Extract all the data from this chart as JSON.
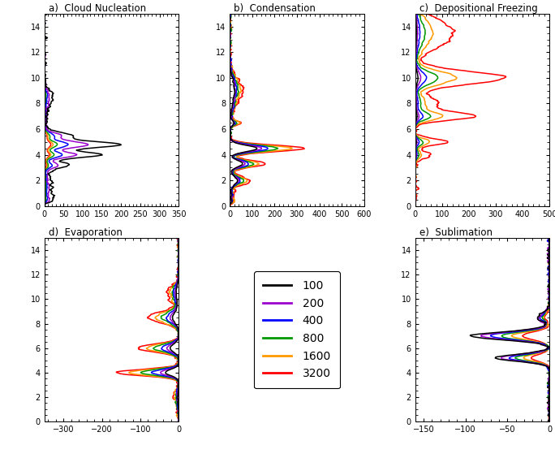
{
  "titles": [
    "a)  Cloud Nucleation",
    "b)  Condensation",
    "c)  Depositional Freezing",
    "d)  Evaporation",
    "e)  Sublimation"
  ],
  "legend_labels": [
    "100",
    "200",
    "400",
    "800",
    "1600",
    "3200"
  ],
  "colors": [
    "#000000",
    "#9900CC",
    "#0000FF",
    "#009900",
    "#FF9900",
    "#FF0000"
  ],
  "ylim": [
    0,
    15
  ],
  "yticks": [
    0,
    2,
    4,
    6,
    8,
    10,
    12,
    14
  ],
  "xlims": {
    "a": [
      0,
      350
    ],
    "b": [
      0,
      600
    ],
    "c": [
      0,
      500
    ],
    "d": [
      -350,
      0
    ],
    "e": [
      -160,
      0
    ]
  },
  "xticks": {
    "a": [
      0,
      50,
      100,
      150,
      200,
      250,
      300,
      350
    ],
    "b": [
      0,
      100,
      200,
      300,
      400,
      500,
      600
    ],
    "c": [
      0,
      100,
      200,
      300,
      400,
      500
    ],
    "d": [
      -300,
      -200,
      -100,
      0
    ],
    "e": [
      -150,
      -100,
      -50,
      0
    ]
  }
}
